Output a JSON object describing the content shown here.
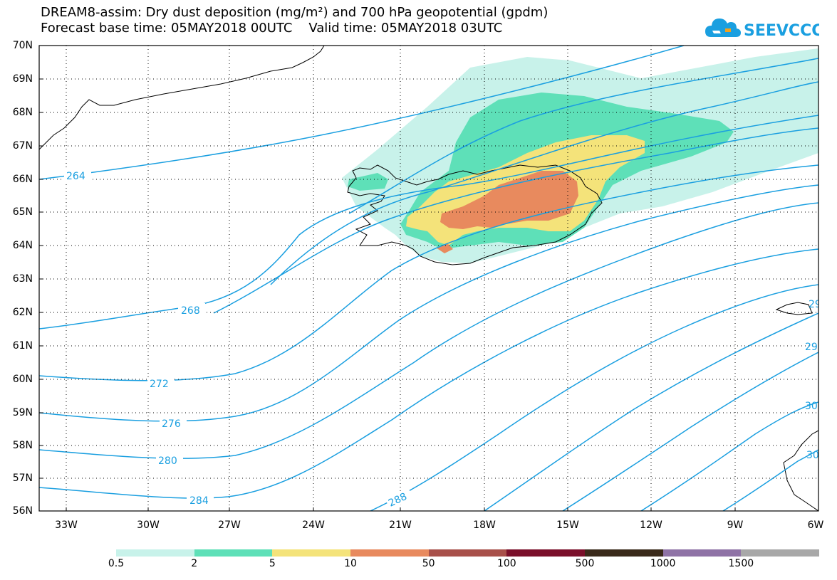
{
  "title_line1": "DREAM8-assim: Dry dust deposition (mg/m²) and 700 hPa geopotential (gpdm)",
  "title_line2": "Forecast base time: 05MAY2018 00UTC    Valid time: 05MAY2018 03UTC",
  "logo_text": "SEEVCCC",
  "lat_labels": [
    "70N",
    "69N",
    "68N",
    "67N",
    "66N",
    "65N",
    "64N",
    "63N",
    "62N",
    "61N",
    "60N",
    "59N",
    "58N",
    "57N",
    "56N"
  ],
  "lon_labels": [
    "33W",
    "30W",
    "27W",
    "24W",
    "21W",
    "18W",
    "15W",
    "12W",
    "9W",
    "6W"
  ],
  "contour_labels": [
    "264",
    "268",
    "272",
    "276",
    "280",
    "284",
    "288",
    "29",
    "29",
    "30",
    "30"
  ],
  "legend": {
    "labels": [
      "0.5",
      "2",
      "5",
      "10",
      "50",
      "100",
      "500",
      "1000",
      "1500"
    ],
    "colors": [
      "#c8f2ea",
      "#5ee0b8",
      "#f4e37a",
      "#e88a5e",
      "#a8504a",
      "#7a0f2a",
      "#3a2a1a",
      "#8f73a6",
      "#a8a8a8"
    ]
  },
  "colors": {
    "contour": "#1a9fe0",
    "coast": "#000000"
  }
}
